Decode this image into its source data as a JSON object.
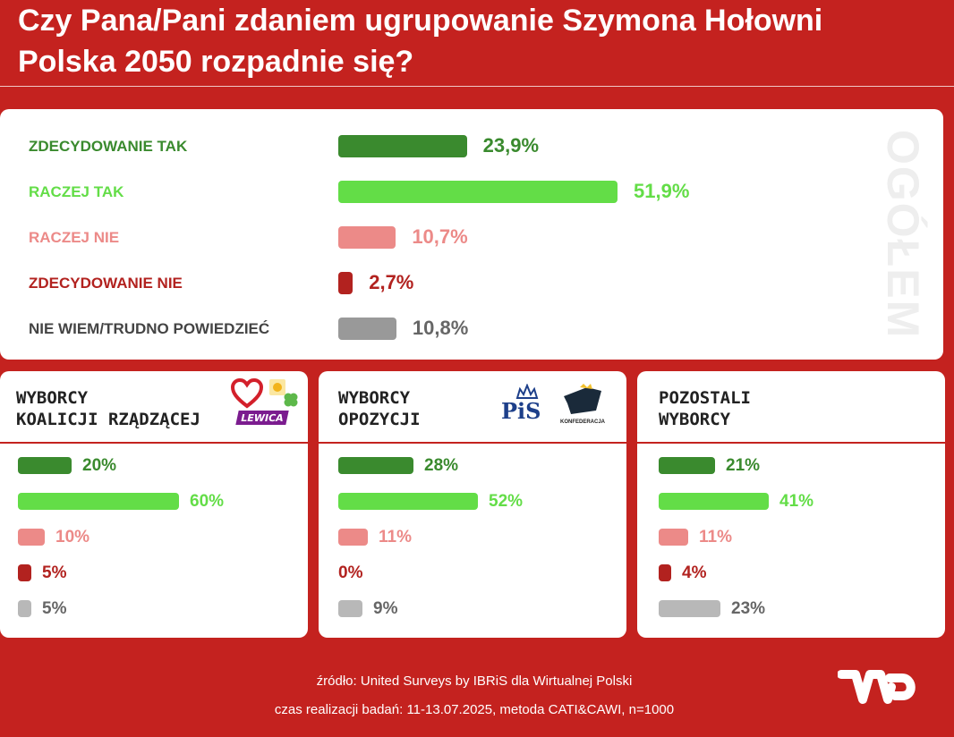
{
  "header": {
    "title_line1": "Czy Pana/Pani zdaniem ugrupowanie Szymona Hołowni",
    "title_line2": "Polska 2050 rozpadnie się?"
  },
  "colors": {
    "background": "#c4221f",
    "dark_green": "#3a8a2e",
    "light_green": "#63dd47",
    "pink": "#ec8a88",
    "dark_red": "#b2221f",
    "gray": "#999999",
    "gray_light": "#b8b8b8"
  },
  "chart_data": [
    {
      "type": "bar",
      "title": "OGÓŁEM",
      "categories": [
        "ZDECYDOWANIE TAK",
        "RACZEJ TAK",
        "RACZEJ NIE",
        "ZDECYDOWANIE NIE",
        "NIE WIEM/TRUDNO POWIEDZIEĆ"
      ],
      "values": [
        23.9,
        51.9,
        10.7,
        2.7,
        10.8
      ],
      "value_labels": [
        "23,9%",
        "51,9%",
        "10,7%",
        "2,7%",
        "10,8%"
      ]
    },
    {
      "type": "bar",
      "title": "WYBORCY KOALICJI RZĄDZĄCEJ",
      "values": [
        20,
        60,
        10,
        5,
        5
      ],
      "value_labels": [
        "20%",
        "60%",
        "10%",
        "5%",
        "5%"
      ]
    },
    {
      "type": "bar",
      "title": "WYBORCY OPOZYCJI",
      "values": [
        28,
        52,
        11,
        0,
        9
      ],
      "value_labels": [
        "28%",
        "52%",
        "11%",
        "0%",
        "9%"
      ]
    },
    {
      "type": "bar",
      "title": "POZOSTALI WYBORCY",
      "values": [
        21,
        41,
        11,
        4,
        23
      ],
      "value_labels": [
        "21%",
        "41%",
        "11%",
        "4%",
        "23%"
      ]
    }
  ],
  "panels": [
    {
      "title_line1": "WYBORCY",
      "title_line2": "KOALICJI RZĄDZĄCEJ",
      "logos": [
        "heart-logo",
        "sun-logo",
        "clover-logo",
        "lewica-logo"
      ]
    },
    {
      "title_line1": "WYBORCY",
      "title_line2": "OPOZYCJI",
      "logos": [
        "pis-logo",
        "konfederacja-logo"
      ]
    },
    {
      "title_line1": "POZOSTALI",
      "title_line2": "WYBORCY",
      "logos": []
    }
  ],
  "logos": {
    "lewica": "LEWICA",
    "pis": "PiS",
    "konfederacja": "KONFEDERACJA",
    "wp": "WP"
  },
  "footer": {
    "source": "źródło: United Surveys by IBRiS dla Wirtualnej Polski",
    "method": "czas realizacji badań: 11-13.07.2025, metoda CATI&CAWI, n=1000"
  }
}
